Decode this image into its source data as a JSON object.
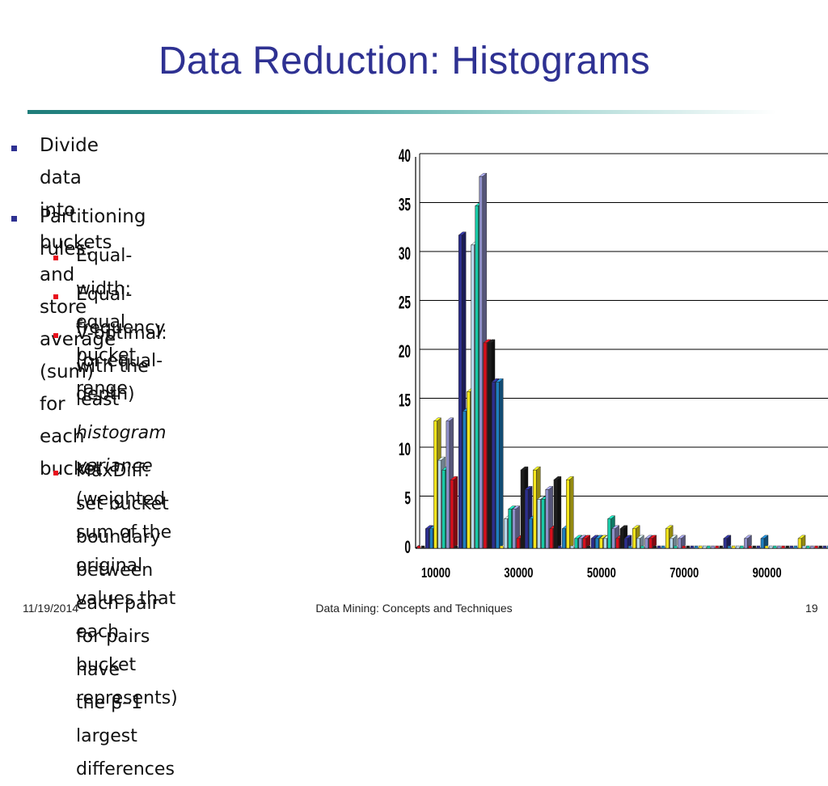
{
  "slide": {
    "title": "Data Reduction: Histograms",
    "bullets": [
      {
        "level": 1,
        "lines": [
          "Divide data into buckets and store",
          "average (sum) for each bucket"
        ]
      },
      {
        "level": 1,
        "lines": [
          "Partitioning rules:"
        ]
      },
      {
        "level": 2,
        "lines": [
          "Equal-width: equal bucket range"
        ]
      },
      {
        "level": 2,
        "lines": [
          "Equal-frequency (or equal-depth)"
        ]
      },
      {
        "level": 2,
        "lines": [
          "V-optimal: with the least",
          "histogram variance (weighted",
          "sum of the original values that",
          "each bucket represents)"
        ]
      },
      {
        "level": 2,
        "lines": [
          "MaxDiff: set bucket boundary",
          "between each pair for pairs have",
          "the β–1 largest differences"
        ]
      }
    ],
    "vopt_italic": "histogram variance",
    "vopt_rest": " (weighted"
  },
  "footer": {
    "date": "11/19/2014",
    "center": "Data Mining: Concepts and Techniques",
    "page": "19"
  },
  "colors": {
    "title": "#2e3192",
    "rule": "#1f7d7a",
    "bullet_l1": "#2e3192",
    "bullet_l2": "#e8101c",
    "bar_palette": [
      "#d90f1c",
      "#1b1b1b",
      "#2d2f8f",
      "#1e7fbf",
      "#f5e51c",
      "#b8d6ea",
      "#18c9a6",
      "#8f8fc9"
    ]
  },
  "chart_data": {
    "type": "bar",
    "style": "3d",
    "grid": true,
    "ylim": [
      0,
      40
    ],
    "yticks": [
      "0",
      "5",
      "10",
      "15",
      "20",
      "25",
      "30",
      "35",
      "40"
    ],
    "xtick_labels": [
      "10000",
      "30000",
      "50000",
      "70000",
      "90000"
    ],
    "values": [
      0,
      0,
      2,
      2,
      13,
      9,
      8,
      13,
      7,
      0,
      32,
      14,
      16,
      31,
      35,
      38,
      21,
      21,
      17,
      17,
      0,
      3,
      4,
      4,
      1,
      8,
      6,
      3,
      8,
      5,
      5,
      6,
      2,
      7,
      0,
      2,
      7,
      0,
      1,
      1,
      1,
      0,
      1,
      1,
      1,
      1,
      3,
      2,
      1,
      2,
      1,
      0,
      2,
      1,
      0,
      1,
      1,
      0,
      0,
      0,
      2,
      1,
      0,
      1,
      0,
      0,
      0,
      0,
      0,
      0,
      0,
      0,
      0,
      0,
      1,
      0,
      0,
      0,
      0,
      1,
      0,
      0,
      0,
      1,
      0,
      0,
      0,
      0,
      0,
      0,
      0,
      0,
      1,
      0,
      0,
      0,
      0,
      0,
      0,
      0
    ]
  }
}
